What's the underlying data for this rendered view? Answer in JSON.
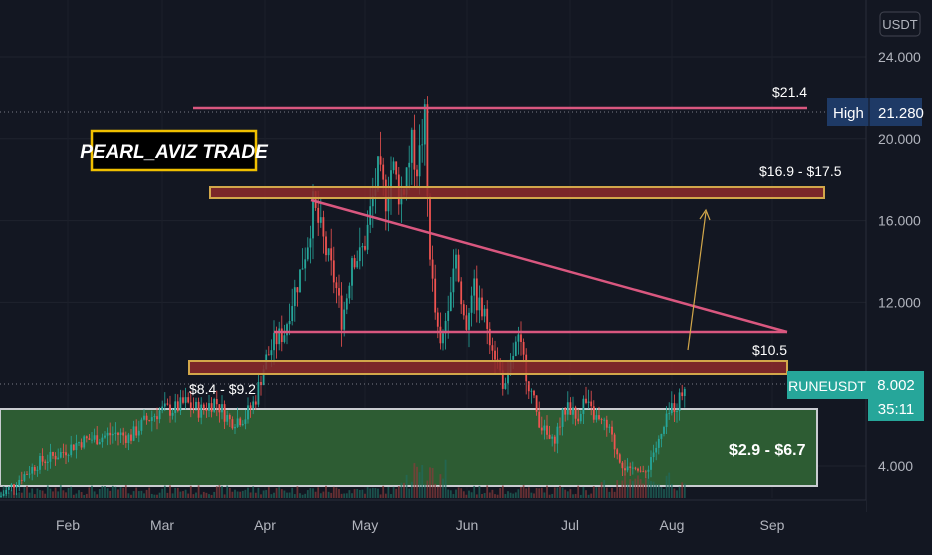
{
  "chart_data": {
    "type": "candlestick",
    "symbol": "RUNEUSDT",
    "currency_label": "USDT",
    "last_price": "8.002",
    "countdown": "35:11",
    "high_label": "High",
    "high_value": "21.280",
    "watermark": "PEARL_AVIZ TRADE",
    "y_ticks": [
      "24.000",
      "20.000",
      "16.000",
      "12.000",
      "4.000"
    ],
    "y_tick_values": [
      24,
      20,
      16,
      12,
      4
    ],
    "x_ticks": [
      "Feb",
      "Mar",
      "Apr",
      "May",
      "Jun",
      "Jul",
      "Aug",
      "Sep"
    ],
    "grid": true,
    "annotations": {
      "resistance_top": "$21.4",
      "target_zone": "$16.9 - $17.5",
      "level_mid": "$10.5",
      "zone_low": "$8.4 - $9.2",
      "demand_zone": "$2.9 - $6.7"
    },
    "price_path": [
      [
        0,
        2.5
      ],
      [
        20,
        3.4
      ],
      [
        40,
        4.2
      ],
      [
        60,
        4.6
      ],
      [
        80,
        5.2
      ],
      [
        100,
        5.4
      ],
      [
        115,
        5.6
      ],
      [
        130,
        5.4
      ],
      [
        145,
        6.2
      ],
      [
        160,
        6.7
      ],
      [
        175,
        6.8
      ],
      [
        185,
        7.1
      ],
      [
        200,
        6.7
      ],
      [
        215,
        7.2
      ],
      [
        230,
        6.2
      ],
      [
        245,
        6.4
      ],
      [
        255,
        7.2
      ],
      [
        265,
        9.1
      ],
      [
        275,
        10.1
      ],
      [
        285,
        10.6
      ],
      [
        290,
        11.8
      ],
      [
        300,
        13.4
      ],
      [
        308,
        15.1
      ],
      [
        313,
        16.7
      ],
      [
        320,
        15.6
      ],
      [
        328,
        14.1
      ],
      [
        335,
        13.0
      ],
      [
        342,
        11.1
      ],
      [
        348,
        12.7
      ],
      [
        352,
        14.4
      ],
      [
        360,
        14.2
      ],
      [
        366,
        15.1
      ],
      [
        372,
        16.9
      ],
      [
        378,
        18.3
      ],
      [
        386,
        17.1
      ],
      [
        392,
        18.8
      ],
      [
        400,
        17.2
      ],
      [
        405,
        18.1
      ],
      [
        412,
        19.6
      ],
      [
        418,
        18.6
      ],
      [
        422,
        20.1
      ],
      [
        425,
        20.9
      ],
      [
        428,
        16.1
      ],
      [
        432,
        13.1
      ],
      [
        436,
        11.1
      ],
      [
        440,
        9.6
      ],
      [
        444,
        10.6
      ],
      [
        448,
        12.1
      ],
      [
        452,
        13.6
      ],
      [
        456,
        14.6
      ],
      [
        460,
        12.2
      ],
      [
        466,
        10.8
      ],
      [
        472,
        12.9
      ],
      [
        478,
        11.9
      ],
      [
        486,
        11.1
      ],
      [
        492,
        10.1
      ],
      [
        500,
        8.6
      ],
      [
        506,
        7.6
      ],
      [
        512,
        9.3
      ],
      [
        518,
        10.1
      ],
      [
        524,
        9.1
      ],
      [
        530,
        7.8
      ],
      [
        538,
        6.4
      ],
      [
        545,
        5.6
      ],
      [
        552,
        5.1
      ],
      [
        560,
        6.1
      ],
      [
        568,
        7.1
      ],
      [
        576,
        6.3
      ],
      [
        584,
        7.2
      ],
      [
        590,
        6.7
      ],
      [
        600,
        6.1
      ],
      [
        608,
        5.8
      ],
      [
        616,
        4.8
      ],
      [
        622,
        4.2
      ],
      [
        630,
        3.6
      ],
      [
        636,
        4.2
      ],
      [
        644,
        3.4
      ],
      [
        652,
        4.6
      ],
      [
        660,
        5.2
      ],
      [
        666,
        6.1
      ],
      [
        672,
        6.9
      ],
      [
        678,
        7.1
      ],
      [
        685,
        8.0
      ]
    ]
  }
}
